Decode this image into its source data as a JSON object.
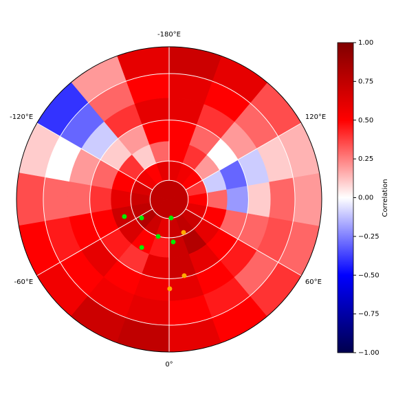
{
  "map": {
    "projection": "north-polar-stereographic",
    "boundary_lat": 20,
    "meridian_labels": [
      {
        "value": -180,
        "label": "-180°E"
      },
      {
        "value": 120,
        "label": "120°E"
      },
      {
        "value": 60,
        "label": "60°E"
      },
      {
        "value": 0,
        "label": "0°"
      },
      {
        "value": -60,
        "label": "-60°E"
      },
      {
        "value": -120,
        "label": "-120°E"
      }
    ],
    "field": {
      "colormap": "seismic",
      "lat_edges": [
        90,
        80,
        70,
        60,
        50,
        40,
        30,
        20
      ],
      "lon_edges": [
        -180,
        -160,
        -140,
        -120,
        -100,
        -80,
        -60,
        -40,
        -20,
        0,
        20,
        40,
        60,
        80,
        100,
        120,
        140,
        160,
        180
      ],
      "values": [
        [
          0.75,
          0.75,
          0.75,
          0.75,
          0.75,
          0.75,
          0.75,
          0.75,
          0.75,
          0.75,
          0.75,
          0.75,
          0.75,
          0.75,
          0.75,
          0.75,
          0.75,
          0.75
        ],
        [
          0.6,
          0.5,
          0.55,
          0.65,
          0.7,
          0.75,
          0.8,
          0.7,
          0.6,
          0.7,
          0.75,
          0.7,
          0.6,
          0.5,
          0.4,
          0.5,
          0.55,
          0.6
        ],
        [
          0.3,
          0.1,
          0.4,
          0.5,
          0.6,
          0.7,
          0.65,
          0.5,
          0.45,
          0.7,
          0.8,
          0.6,
          0.5,
          0.3,
          -0.1,
          0.2,
          0.4,
          0.5
        ],
        [
          0.5,
          0.2,
          0.1,
          0.3,
          0.4,
          0.5,
          0.45,
          0.4,
          0.6,
          0.7,
          0.6,
          0.5,
          0.3,
          -0.2,
          -0.3,
          0.0,
          0.3,
          0.5
        ],
        [
          0.6,
          0.4,
          -0.1,
          0.2,
          0.3,
          0.5,
          0.6,
          0.5,
          0.55,
          0.6,
          0.5,
          0.45,
          0.3,
          0.1,
          -0.1,
          0.2,
          0.4,
          0.6
        ],
        [
          0.5,
          0.3,
          -0.3,
          0.0,
          0.3,
          0.45,
          0.5,
          0.55,
          0.6,
          0.5,
          0.45,
          0.3,
          0.35,
          0.3,
          0.1,
          0.3,
          0.5,
          0.6
        ],
        [
          0.6,
          0.2,
          -0.4,
          0.1,
          0.35,
          0.5,
          0.55,
          0.7,
          0.75,
          0.6,
          0.5,
          0.4,
          0.3,
          0.2,
          0.15,
          0.35,
          0.6,
          0.7
        ]
      ]
    },
    "stations": [
      {
        "lon": -69,
        "lat": 65.2,
        "color": "#00ee00"
      },
      {
        "lon": -56,
        "lat": 72.7,
        "color": "#00ee00"
      },
      {
        "lon": 6,
        "lat": 80.2,
        "color": "#00ee00"
      },
      {
        "lon": -16.5,
        "lat": 69.9,
        "color": "#00ee00"
      },
      {
        "lon": 5.5,
        "lat": 67.8,
        "color": "#00ee00"
      },
      {
        "lon": -29.7,
        "lat": 61.5,
        "color": "#00ee00"
      },
      {
        "lon": 23.6,
        "lat": 71.2,
        "color": "#ffaa00"
      },
      {
        "lon": 11.2,
        "lat": 50.7,
        "color": "#ffaa00"
      },
      {
        "lon": 0.4,
        "lat": 45.4,
        "color": "#ffaa00"
      }
    ],
    "colorbar": {
      "label": "Correlation",
      "lim": [
        -1,
        1
      ],
      "ticks": [
        {
          "value": -1,
          "label": "−1.00"
        },
        {
          "value": -0.75,
          "label": "−0.75"
        },
        {
          "value": -0.5,
          "label": "−0.50"
        },
        {
          "value": -0.25,
          "label": "−0.25"
        },
        {
          "value": 0,
          "label": "0.00"
        },
        {
          "value": 0.25,
          "label": "0.25"
        },
        {
          "value": 0.5,
          "label": "0.50"
        },
        {
          "value": 0.75,
          "label": "0.75"
        },
        {
          "value": 1,
          "label": "1.00"
        }
      ]
    }
  }
}
